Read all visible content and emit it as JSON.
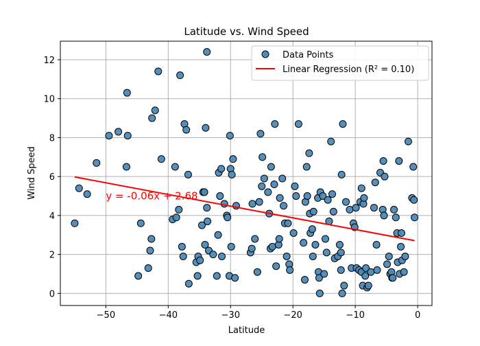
{
  "chart_data": {
    "type": "scatter",
    "title": "Latitude vs. Wind Speed",
    "xlabel": "Latitude",
    "ylabel": "Wind Speed",
    "xlim": [
      -57.3,
      2.3
    ],
    "ylim": [
      -0.62,
      12.95
    ],
    "xticks": [
      -50,
      -40,
      -30,
      -20,
      -10,
      0
    ],
    "yticks": [
      0,
      2,
      4,
      6,
      8,
      10,
      12
    ],
    "grid": true,
    "legend_position": "top-right",
    "colors": {
      "points_fill": "#4c8ab8",
      "points_edge": "#000000",
      "regression_line": "#ff0000",
      "equation_text": "#ff0000",
      "grid": "#b0b0b0"
    },
    "series": [
      {
        "name": "Data Points",
        "kind": "scatter",
        "points": [
          [
            -55.0,
            3.6
          ],
          [
            -54.3,
            5.4
          ],
          [
            -53.0,
            5.1
          ],
          [
            -51.5,
            6.7
          ],
          [
            -49.5,
            8.1
          ],
          [
            -48.0,
            8.3
          ],
          [
            -46.7,
            6.5
          ],
          [
            -46.6,
            10.3
          ],
          [
            -46.5,
            8.1
          ],
          [
            -44.8,
            0.9
          ],
          [
            -44.4,
            3.6
          ],
          [
            -43.2,
            1.3
          ],
          [
            -42.9,
            2.2
          ],
          [
            -42.7,
            2.8
          ],
          [
            -42.6,
            9.0
          ],
          [
            -42.1,
            9.4
          ],
          [
            -41.6,
            11.4
          ],
          [
            -41.1,
            6.9
          ],
          [
            -39.3,
            3.8
          ],
          [
            -38.9,
            6.5
          ],
          [
            -38.7,
            3.9
          ],
          [
            -38.3,
            4.3
          ],
          [
            -38.1,
            11.2
          ],
          [
            -37.8,
            2.4
          ],
          [
            -37.6,
            1.9
          ],
          [
            -37.4,
            8.7
          ],
          [
            -37.1,
            8.4
          ],
          [
            -36.8,
            6.1
          ],
          [
            -36.7,
            0.5
          ],
          [
            -35.5,
            1.6
          ],
          [
            -35.2,
            1.9
          ],
          [
            -35.3,
            0.9
          ],
          [
            -34.9,
            1.7
          ],
          [
            -34.6,
            3.5
          ],
          [
            -34.4,
            5.2
          ],
          [
            -34.2,
            5.2
          ],
          [
            -34.1,
            2.5
          ],
          [
            -34.0,
            8.5
          ],
          [
            -33.8,
            4.4
          ],
          [
            -33.7,
            3.7
          ],
          [
            -33.8,
            12.4
          ],
          [
            -33.5,
            2.2
          ],
          [
            -32.8,
            2.0
          ],
          [
            -32.2,
            0.9
          ],
          [
            -32.0,
            3.0
          ],
          [
            -31.9,
            6.2
          ],
          [
            -31.7,
            5.0
          ],
          [
            -31.5,
            6.4
          ],
          [
            -31.4,
            1.9
          ],
          [
            -31.0,
            4.6
          ],
          [
            -30.6,
            4.0
          ],
          [
            -30.5,
            3.9
          ],
          [
            -30.2,
            0.9
          ],
          [
            -30.1,
            8.1
          ],
          [
            -30.0,
            6.4
          ],
          [
            -29.9,
            2.4
          ],
          [
            -29.8,
            6.1
          ],
          [
            -29.6,
            6.9
          ],
          [
            -29.3,
            0.8
          ],
          [
            -29.1,
            4.5
          ],
          [
            -26.8,
            2.1
          ],
          [
            -26.6,
            2.3
          ],
          [
            -26.5,
            4.6
          ],
          [
            -26.1,
            2.8
          ],
          [
            -25.7,
            1.1
          ],
          [
            -25.4,
            4.7
          ],
          [
            -25.2,
            8.2
          ],
          [
            -25.0,
            5.5
          ],
          [
            -24.9,
            7.0
          ],
          [
            -24.6,
            5.9
          ],
          [
            -24.0,
            5.2
          ],
          [
            -23.8,
            4.1
          ],
          [
            -23.6,
            2.3
          ],
          [
            -23.5,
            6.5
          ],
          [
            -23.3,
            2.4
          ],
          [
            -23.0,
            5.6
          ],
          [
            -22.9,
            8.7
          ],
          [
            -22.7,
            1.4
          ],
          [
            -22.3,
            2.5
          ],
          [
            -22.2,
            2.8
          ],
          [
            -22.1,
            4.9
          ],
          [
            -21.7,
            5.9
          ],
          [
            -21.5,
            4.5
          ],
          [
            -21.3,
            3.6
          ],
          [
            -21.0,
            1.9
          ],
          [
            -20.8,
            3.6
          ],
          [
            -20.6,
            1.5
          ],
          [
            -20.5,
            1.2
          ],
          [
            -19.9,
            3.1
          ],
          [
            -19.7,
            5.5
          ],
          [
            -19.5,
            5.0
          ],
          [
            -19.1,
            8.7
          ],
          [
            -18.3,
            2.6
          ],
          [
            -18.1,
            0.7
          ],
          [
            -18.0,
            4.7
          ],
          [
            -17.8,
            6.5
          ],
          [
            -17.7,
            5.0
          ],
          [
            -17.4,
            7.2
          ],
          [
            -17.3,
            4.1
          ],
          [
            -17.2,
            3.1
          ],
          [
            -16.9,
            3.3
          ],
          [
            -16.8,
            1.9
          ],
          [
            -16.7,
            4.2
          ],
          [
            -16.4,
            2.5
          ],
          [
            -16.0,
            4.9
          ],
          [
            -15.9,
            1.1
          ],
          [
            -15.8,
            0.8
          ],
          [
            -15.7,
            0.0
          ],
          [
            -15.6,
            5.2
          ],
          [
            -15.2,
            5.0
          ],
          [
            -15.0,
            1.0
          ],
          [
            -14.8,
            2.8
          ],
          [
            -14.6,
            2.1
          ],
          [
            -14.4,
            4.8
          ],
          [
            -14.2,
            3.7
          ],
          [
            -13.9,
            7.8
          ],
          [
            -13.7,
            5.1
          ],
          [
            -13.5,
            4.2
          ],
          [
            -13.3,
            1.8
          ],
          [
            -12.8,
            1.9
          ],
          [
            -12.5,
            2.5
          ],
          [
            -12.3,
            2.1
          ],
          [
            -12.3,
            1.2
          ],
          [
            -12.2,
            6.1
          ],
          [
            -12.1,
            0.0
          ],
          [
            -12.0,
            8.7
          ],
          [
            -11.8,
            0.4
          ],
          [
            -11.5,
            4.7
          ],
          [
            -10.9,
            4.3
          ],
          [
            -10.6,
            1.3
          ],
          [
            -10.3,
            3.6
          ],
          [
            -10.1,
            3.4
          ],
          [
            -9.9,
            4.4
          ],
          [
            -9.8,
            1.3
          ],
          [
            -9.4,
            1.2
          ],
          [
            -9.2,
            4.7
          ],
          [
            -9.0,
            5.4
          ],
          [
            -9.0,
            1.1
          ],
          [
            -8.8,
            0.4
          ],
          [
            -8.7,
            4.6
          ],
          [
            -8.6,
            4.9
          ],
          [
            -8.4,
            0.9
          ],
          [
            -8.3,
            1.3
          ],
          [
            -8.1,
            0.3
          ],
          [
            -7.9,
            0.4
          ],
          [
            -7.5,
            1.1
          ],
          [
            -7.0,
            4.4
          ],
          [
            -6.8,
            5.7
          ],
          [
            -6.6,
            2.5
          ],
          [
            -6.5,
            1.2
          ],
          [
            -6.0,
            6.2
          ],
          [
            -5.6,
            4.3
          ],
          [
            -5.5,
            6.8
          ],
          [
            -5.4,
            4.0
          ],
          [
            -5.3,
            6.0
          ],
          [
            -4.9,
            1.5
          ],
          [
            -4.6,
            1.9
          ],
          [
            -4.4,
            1.0
          ],
          [
            -4.2,
            1.1
          ],
          [
            -4.1,
            0.8
          ],
          [
            -4.0,
            0.8
          ],
          [
            -3.8,
            4.3
          ],
          [
            -3.5,
            3.9
          ],
          [
            -3.3,
            3.1
          ],
          [
            -3.2,
            1.6
          ],
          [
            -3.0,
            6.8
          ],
          [
            -2.9,
            1.0
          ],
          [
            -2.7,
            2.4
          ],
          [
            -2.6,
            3.1
          ],
          [
            -2.5,
            1.7
          ],
          [
            -2.2,
            1.1
          ],
          [
            -2.0,
            1.9
          ],
          [
            -1.5,
            7.8
          ],
          [
            -0.9,
            4.9
          ],
          [
            -0.7,
            6.5
          ],
          [
            -0.6,
            4.8
          ],
          [
            -0.5,
            3.9
          ]
        ]
      },
      {
        "name": "Linear Regression (R² = 0.10)",
        "kind": "line",
        "x": [
          -55.0,
          -0.5
        ],
        "y": [
          5.98,
          2.71
        ]
      }
    ],
    "annotations": [
      {
        "text": "y = -0.06x + 2.68",
        "x": -50,
        "y": 5.0
      }
    ]
  }
}
